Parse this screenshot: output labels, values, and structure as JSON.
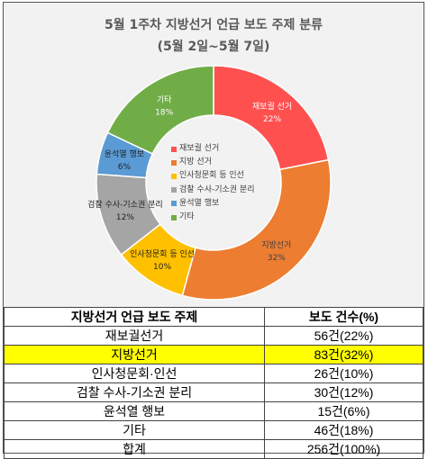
{
  "chart_data": {
    "type": "donut",
    "title": "5월 1주차 지방선거 언급 보도 주제 분류",
    "subtitle": "(5월 2일~5월 7일)",
    "categories": [
      "재보궐선거",
      "지방선거",
      "인사청문회 등 인선",
      "검찰 수사-기소권 분리",
      "윤석열 행보",
      "기타"
    ],
    "slice_labels": [
      "재보궐 선거",
      "지방선거",
      "인사청문회 등 인선",
      "검찰 수사-기소권 분리",
      "윤석열 행보",
      "기타"
    ],
    "legend": [
      "재보궐 선거",
      "지방 선거",
      "인사청문회 등 인선",
      "검찰 수사-기소권 분리",
      "윤석열 행보",
      "기타"
    ],
    "values": [
      56,
      83,
      26,
      30,
      15,
      46
    ],
    "percent_labels": [
      "22%",
      "32%",
      "10%",
      "12%",
      "6%",
      "18%"
    ],
    "colors": [
      "#ff5050",
      "#ed7d31",
      "#ffc000",
      "#a5a5a5",
      "#5b9bd5",
      "#70ad47"
    ],
    "legend_placement": "center"
  },
  "table": {
    "headers": [
      "지방선거 언급 보도 주제",
      "보도 건수(%)"
    ],
    "rows": [
      {
        "topic": "재보궐선거",
        "count": "56건(22%)",
        "highlight": false
      },
      {
        "topic": "지방선거",
        "count": "83건(32%)",
        "highlight": true
      },
      {
        "topic": "인사청문회·인선",
        "count": "26건(10%)",
        "highlight": false
      },
      {
        "topic": "검찰 수사-기소권 분리",
        "count": "30건(12%)",
        "highlight": false
      },
      {
        "topic": "윤석열 행보",
        "count": "15건(6%)",
        "highlight": false
      },
      {
        "topic": "기타",
        "count": "46건(18%)",
        "highlight": false
      },
      {
        "topic": "합계",
        "count": "256건(100%)",
        "highlight": false
      }
    ]
  }
}
